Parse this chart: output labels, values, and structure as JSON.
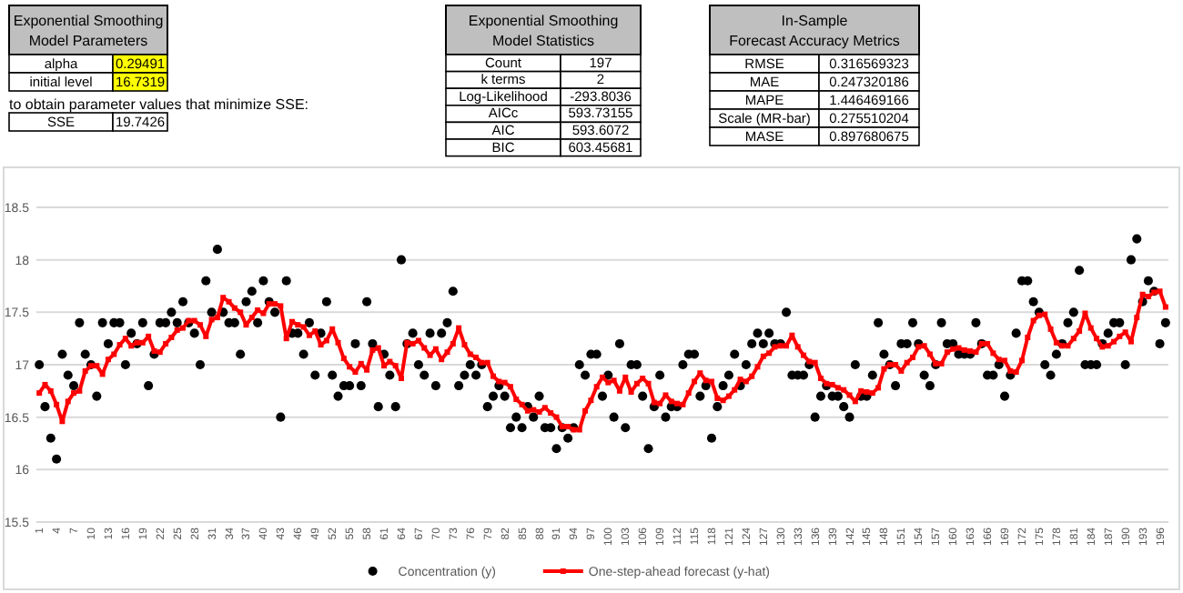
{
  "chart_data": [
    {
      "type": "other",
      "title": "Exponential Smoothing Model Parameters",
      "color": "#ffff00",
      "annotations": [
        "alpha",
        "0.29491",
        "initial level",
        "16.7319"
      ]
    },
    {
      "type": "other",
      "title": "to obtain parameter values that minimize SSE:",
      "annotations": [
        "SSE",
        "19.7426"
      ]
    },
    {
      "type": "other",
      "title": "Exponential Smoothing Model Statistics",
      "annotations": [
        "Count",
        "197",
        "k terms",
        "2",
        "Log-Likelihood",
        "-293.8036",
        "AICc",
        "593.73155",
        "AIC",
        "593.6072",
        "BIC",
        "603.45681"
      ]
    },
    {
      "type": "other",
      "title": "In-Sample Forecast Accuracy Metrics",
      "annotations": [
        "RMSE",
        "0.316569323",
        "MAE",
        "0.247320186",
        "MAPE",
        "1.446469166",
        "Scale (MR-bar)",
        "0.275510204",
        "MASE",
        "0.897680675"
      ]
    },
    {
      "type": "line",
      "categories": [
        "1",
        null,
        null,
        "4",
        null,
        null,
        "7",
        null,
        null,
        "10",
        null,
        null,
        "13",
        null,
        null,
        "16",
        null,
        null,
        "19",
        null,
        null,
        "22",
        null,
        null,
        "25",
        null,
        null,
        "28",
        null,
        null,
        "31",
        null,
        null,
        "34",
        null,
        null,
        "37",
        null,
        null,
        "40",
        null,
        null,
        "43",
        null,
        null,
        "46",
        null,
        null,
        "49",
        null,
        null,
        "52",
        null,
        null,
        "55",
        null,
        null,
        "58",
        null,
        null,
        "61",
        null,
        null,
        "64",
        null,
        null,
        "67",
        null,
        null,
        "70",
        null,
        null,
        "73",
        null,
        null,
        "76",
        null,
        null,
        "79",
        null,
        null,
        "82",
        null,
        null,
        "85",
        null,
        null,
        "88",
        null,
        null,
        "91",
        null,
        null,
        "94",
        null,
        null,
        "97",
        null,
        null,
        "100",
        null,
        null,
        "103",
        null,
        null,
        "106",
        null,
        null,
        "109",
        null,
        null,
        "112",
        null,
        null,
        "115",
        null,
        null,
        "118",
        null,
        null,
        "121",
        null,
        null,
        "124",
        null,
        null,
        "127",
        null,
        null,
        "130",
        null,
        null,
        "133",
        null,
        null,
        "136",
        null,
        null,
        "139",
        null,
        null,
        "142",
        null,
        null,
        "145",
        null,
        null,
        "148",
        null,
        null,
        "151",
        null,
        null,
        "154",
        null,
        null,
        "157",
        null,
        null,
        "160",
        null,
        null,
        "163",
        null,
        null,
        "166",
        null,
        null,
        "169",
        null,
        null,
        "172",
        null,
        null,
        "175",
        null,
        null,
        "178",
        null,
        null,
        "181",
        null,
        null,
        "184",
        null,
        null,
        "187",
        null,
        null,
        "190",
        null,
        null,
        "193",
        null,
        null,
        "196",
        null
      ],
      "ylim": [
        15.5,
        18.5
      ],
      "yticks": [
        15.5,
        16,
        16.5,
        17,
        17.5,
        18,
        18.5
      ],
      "grid": "y",
      "legend": "bottom",
      "series": [
        {
          "name": "Concentration (y)",
          "type": "scatter",
          "marker": "circle",
          "color": "#000000",
          "values": [
            17.0,
            16.6,
            16.3,
            16.1,
            17.1,
            16.9,
            16.8,
            17.4,
            17.1,
            17.0,
            16.7,
            17.4,
            17.2,
            17.4,
            17.4,
            17.0,
            17.3,
            17.2,
            17.4,
            16.8,
            17.1,
            17.4,
            17.4,
            17.5,
            17.4,
            17.6,
            17.4,
            17.3,
            17.0,
            17.8,
            17.5,
            18.1,
            17.5,
            17.4,
            17.4,
            17.1,
            17.6,
            17.7,
            17.4,
            17.8,
            17.6,
            17.5,
            16.5,
            17.8,
            17.3,
            17.3,
            17.1,
            17.4,
            16.9,
            17.3,
            17.6,
            16.9,
            16.7,
            16.8,
            16.8,
            17.2,
            16.8,
            17.6,
            17.2,
            16.6,
            17.1,
            16.9,
            16.6,
            18.0,
            17.2,
            17.3,
            17.0,
            16.9,
            17.3,
            16.8,
            17.3,
            17.4,
            17.7,
            16.8,
            16.9,
            17.0,
            16.9,
            17.0,
            16.6,
            16.7,
            16.8,
            16.7,
            16.4,
            16.5,
            16.4,
            16.6,
            16.5,
            16.7,
            16.4,
            16.4,
            16.2,
            16.4,
            16.3,
            16.4,
            17.0,
            16.9,
            17.1,
            17.1,
            16.7,
            16.9,
            16.5,
            17.2,
            16.4,
            17.0,
            17.0,
            16.7,
            16.2,
            16.6,
            16.9,
            16.5,
            16.6,
            16.6,
            17.0,
            17.1,
            17.1,
            16.7,
            16.8,
            16.3,
            16.6,
            16.8,
            16.9,
            17.1,
            16.8,
            17.0,
            17.2,
            17.3,
            17.2,
            17.3,
            17.2,
            17.2,
            17.5,
            16.9,
            16.9,
            16.9,
            17.0,
            16.5,
            16.7,
            16.8,
            16.7,
            16.7,
            16.6,
            16.5,
            17.0,
            16.7,
            16.7,
            16.9,
            17.4,
            17.1,
            17.0,
            16.8,
            17.2,
            17.2,
            17.4,
            17.2,
            16.9,
            16.8,
            17.0,
            17.4,
            17.2,
            17.2,
            17.1,
            17.1,
            17.1,
            17.4,
            17.2,
            16.9,
            16.9,
            17.0,
            16.7,
            16.9,
            17.3,
            17.8,
            17.8,
            17.6,
            17.5,
            17.0,
            16.9,
            17.1,
            17.2,
            17.4,
            17.5,
            17.9,
            17.0,
            17.0,
            17.0,
            17.2,
            17.3,
            17.4,
            17.4,
            17.0,
            18.0,
            18.2,
            17.6,
            17.8,
            17.7,
            17.2,
            17.4
          ]
        },
        {
          "name": "One-step-ahead forecast (y-hat)",
          "type": "line",
          "marker": "square",
          "color": "#ff0000",
          "values": [
            16.73,
            16.81,
            16.75,
            16.62,
            16.46,
            16.65,
            16.73,
            16.75,
            16.94,
            16.99,
            16.99,
            16.91,
            17.05,
            17.1,
            17.19,
            17.25,
            17.18,
            17.21,
            17.21,
            17.27,
            17.13,
            17.12,
            17.2,
            17.26,
            17.33,
            17.35,
            17.42,
            17.42,
            17.38,
            17.27,
            17.43,
            17.45,
            17.64,
            17.6,
            17.54,
            17.5,
            17.38,
            17.45,
            17.52,
            17.49,
            17.58,
            17.58,
            17.56,
            17.25,
            17.41,
            17.38,
            17.36,
            17.28,
            17.32,
            17.19,
            17.23,
            17.34,
            17.21,
            17.06,
            16.98,
            16.93,
            17.01,
            16.95,
            17.14,
            17.16,
            16.99,
            17.03,
            16.99,
            16.87,
            17.21,
            17.2,
            17.23,
            17.16,
            17.09,
            17.15,
            17.05,
            17.12,
            17.2,
            17.35,
            17.19,
            17.1,
            17.07,
            17.02,
            17.02,
            16.89,
            16.84,
            16.83,
            16.79,
            16.67,
            16.62,
            16.56,
            16.57,
            16.55,
            16.59,
            16.54,
            16.5,
            16.41,
            16.41,
            16.38,
            16.38,
            16.56,
            16.66,
            16.79,
            16.88,
            16.83,
            16.85,
            16.75,
            16.88,
            16.74,
            16.82,
            16.87,
            16.82,
            16.64,
            16.63,
            16.71,
            16.65,
            16.63,
            16.62,
            16.73,
            16.84,
            16.92,
            16.85,
            16.84,
            16.68,
            16.66,
            16.7,
            16.76,
            16.86,
            16.84,
            16.89,
            16.98,
            17.08,
            17.11,
            17.17,
            17.18,
            17.18,
            17.28,
            17.17,
            17.09,
            17.03,
            17.02,
            16.87,
            16.82,
            16.81,
            16.78,
            16.76,
            16.71,
            16.65,
            16.75,
            16.74,
            16.73,
            16.78,
            16.96,
            17.0,
            17.0,
            16.94,
            17.02,
            17.07,
            17.17,
            17.18,
            17.1,
            17.01,
            17.01,
            17.12,
            17.15,
            17.16,
            17.14,
            17.13,
            17.12,
            17.2,
            17.2,
            17.11,
            17.05,
            17.04,
            16.94,
            16.93,
            17.04,
            17.26,
            17.42,
            17.47,
            17.48,
            17.34,
            17.21,
            17.18,
            17.18,
            17.25,
            17.32,
            17.49,
            17.35,
            17.25,
            17.17,
            17.18,
            17.22,
            17.27,
            17.31,
            17.22,
            17.45,
            17.67,
            17.65,
            17.69,
            17.7,
            17.55
          ]
        }
      ]
    }
  ]
}
